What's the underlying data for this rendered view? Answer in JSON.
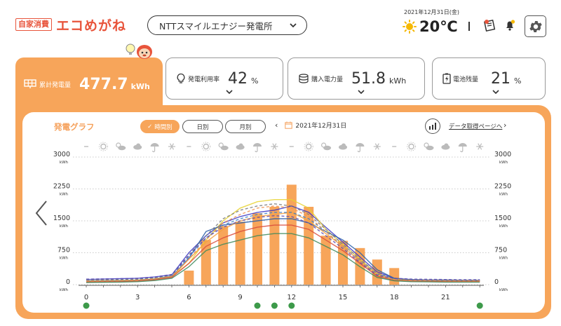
{
  "header": {
    "logo_badge": "自家消費",
    "logo_text": "エコめがね",
    "site_selector": "NTTスマイルエナジー発電所",
    "date": "2021年12月31日(金)",
    "temperature": "20℃",
    "icons": [
      "sun-icon",
      "report-icon",
      "bell-icon",
      "gear-icon"
    ]
  },
  "stats": {
    "generation": {
      "label": "累計発電量",
      "value": "477.7",
      "unit": "kWh"
    },
    "self_use_rate": {
      "label": "発電利用率",
      "value": "42",
      "unit": "%"
    },
    "purchased": {
      "label": "購入電力量",
      "value": "51.8",
      "unit": "kWh"
    },
    "battery": {
      "label": "電池残量",
      "value": "21",
      "unit": "%"
    }
  },
  "graph": {
    "title": "発電グラフ",
    "tabs": [
      "時間別",
      "日別",
      "月別"
    ],
    "active_tab_check": "✓",
    "date": "2021年12月31日",
    "data_link": "データ取得ページへ"
  },
  "colors": {
    "accent": "#f7a55a",
    "logo": "#e8543b"
  },
  "chart_data": {
    "type": "bar",
    "x": [
      0,
      1,
      2,
      3,
      4,
      5,
      6,
      7,
      8,
      9,
      10,
      11,
      12,
      13,
      14,
      15,
      16,
      17,
      18,
      19,
      20,
      21,
      22,
      23
    ],
    "x_ticks": [
      "0",
      "3",
      "6",
      "9",
      "12",
      "15",
      "18",
      "21"
    ],
    "values": [
      0,
      0,
      0,
      0,
      0,
      0,
      330,
      1050,
      1380,
      1480,
      1680,
      1830,
      2350,
      1830,
      1150,
      1030,
      860,
      590,
      390,
      0,
      0,
      0,
      0,
      0
    ],
    "ylim": [
      0,
      3000
    ],
    "y_ticks": [
      "0",
      "750",
      "1500",
      "2250",
      "3000"
    ],
    "y_unit": "kWh",
    "weather_icons": [
      "-",
      "sun",
      "cloud-sun",
      "cloud",
      "umbrella",
      "snow",
      "-",
      "sun",
      "cloud-sun",
      "cloud",
      "umbrella",
      "snow",
      "-",
      "sun",
      "cloud-sun",
      "cloud",
      "umbrella",
      "snow",
      "-",
      "sun",
      "cloud-sun",
      "cloud",
      "umbrella",
      "snow"
    ],
    "marker_hours": [
      0,
      10,
      11,
      12,
      23
    ],
    "overlay_lines": [
      {
        "color": "#3a35c4",
        "dash": false,
        "values": [
          120,
          130,
          140,
          150,
          180,
          230,
          750,
          1150,
          1450,
          1600,
          1700,
          1750,
          1850,
          1700,
          1350,
          1000,
          650,
          300,
          150,
          120,
          110,
          110,
          100,
          100
        ]
      },
      {
        "color": "#e8d230",
        "dash": false,
        "values": [
          90,
          95,
          100,
          110,
          140,
          200,
          500,
          1050,
          1500,
          1800,
          1950,
          2000,
          2000,
          1800,
          1300,
          950,
          600,
          250,
          120,
          100,
          90,
          90,
          85,
          85
        ]
      },
      {
        "color": "#2a5fa8",
        "dash": false,
        "values": [
          80,
          85,
          90,
          100,
          130,
          190,
          620,
          1250,
          1400,
          1450,
          1500,
          1550,
          1550,
          1450,
          1250,
          1050,
          750,
          350,
          150,
          110,
          100,
          100,
          95,
          95
        ]
      },
      {
        "color": "#f3a040",
        "dash": false,
        "values": [
          70,
          75,
          80,
          90,
          120,
          180,
          600,
          1000,
          1300,
          1500,
          1600,
          1650,
          1700,
          1500,
          1200,
          900,
          550,
          220,
          110,
          90,
          85,
          80,
          80,
          80
        ]
      },
      {
        "color": "#d94a3c",
        "dash": false,
        "values": [
          60,
          65,
          70,
          80,
          110,
          170,
          500,
          900,
          1100,
          1250,
          1350,
          1400,
          1400,
          1300,
          1050,
          800,
          500,
          200,
          100,
          80,
          75,
          70,
          70,
          70
        ]
      },
      {
        "color": "#3d8a5c",
        "dash": false,
        "values": [
          50,
          55,
          60,
          70,
          95,
          150,
          420,
          800,
          950,
          1050,
          1150,
          1200,
          1200,
          1100,
          900,
          700,
          420,
          170,
          90,
          70,
          65,
          60,
          60,
          60
        ]
      },
      {
        "color": "#7a7a7a",
        "dash": true,
        "values": [
          110,
          115,
          120,
          130,
          160,
          220,
          700,
          1150,
          1550,
          1750,
          1850,
          1900,
          1850,
          1650,
          1300,
          950,
          600,
          260,
          140,
          115,
          110,
          110,
          105,
          105
        ]
      },
      {
        "color": "#3a7fc8",
        "dash": true,
        "values": [
          100,
          105,
          110,
          120,
          150,
          210,
          650,
          1100,
          1400,
          1550,
          1650,
          1700,
          1700,
          1550,
          1250,
          900,
          560,
          240,
          130,
          110,
          100,
          100,
          95,
          95
        ]
      },
      {
        "color": "#f09050",
        "dash": true,
        "values": [
          90,
          95,
          100,
          110,
          140,
          200,
          600,
          1050,
          1450,
          1650,
          1800,
          1850,
          1800,
          1600,
          1250,
          900,
          550,
          230,
          120,
          100,
          95,
          90,
          90,
          90
        ]
      },
      {
        "color": "#5a4ab0",
        "dash": true,
        "values": [
          130,
          135,
          140,
          150,
          180,
          240,
          680,
          1100,
          1350,
          1500,
          1580,
          1620,
          1600,
          1450,
          1150,
          850,
          520,
          220,
          150,
          130,
          125,
          120,
          115,
          115
        ]
      }
    ]
  }
}
